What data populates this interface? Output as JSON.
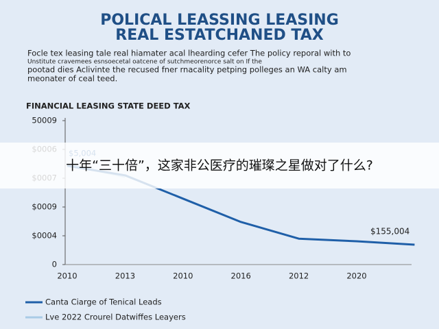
{
  "chart_data": {
    "type": "line",
    "title": [
      "POLICAL LEASSING LEASING",
      "REAL ESTATCHANED TAX"
    ],
    "subtitle": [
      "Focle tex leasing tale real hiamater acal lhearding cefer The policy reporal with to",
      "Unstitute cravemees esnsoecetal oatcene of sutchmeorenorce salt on If the",
      "pootad dies Aclivinte the recused fner rnacality petping polleges an WA calty am",
      "meonater of ceal teed."
    ],
    "heading": "FINANCIAL LEASING STATE DEED TAX",
    "categories": [
      "2010",
      "2013",
      "2010",
      "2016",
      "2012",
      "2020",
      null
    ],
    "series": [
      {
        "name": "Canta Ciarge of Tenical Leads",
        "color": "#1f5fa8",
        "values": [
          3.43,
          3.1,
          2.29,
          1.48,
          0.9,
          0.81,
          0.69
        ]
      },
      {
        "name": "Lve 2022 Crourel Datwiffes Leayers",
        "color": "#a9cbe6",
        "values": [
          3.48,
          3.05,
          null,
          null,
          null,
          null,
          null
        ]
      }
    ],
    "ylim": [
      0,
      5
    ],
    "yticks": [
      {
        "value": 0,
        "label": "0"
      },
      {
        "value": 1,
        "label": "$0004"
      },
      {
        "value": 2,
        "label": "$0009"
      },
      {
        "value": 3,
        "label": "$0007"
      },
      {
        "value": 4,
        "label": "$0006"
      },
      {
        "value": 5,
        "label": "50009"
      }
    ],
    "annotations": [
      "$5,004",
      "$155,004"
    ]
  },
  "overlay_caption": "十年“三十倍”，这家非公医疗的璀璨之星做对了什么?"
}
